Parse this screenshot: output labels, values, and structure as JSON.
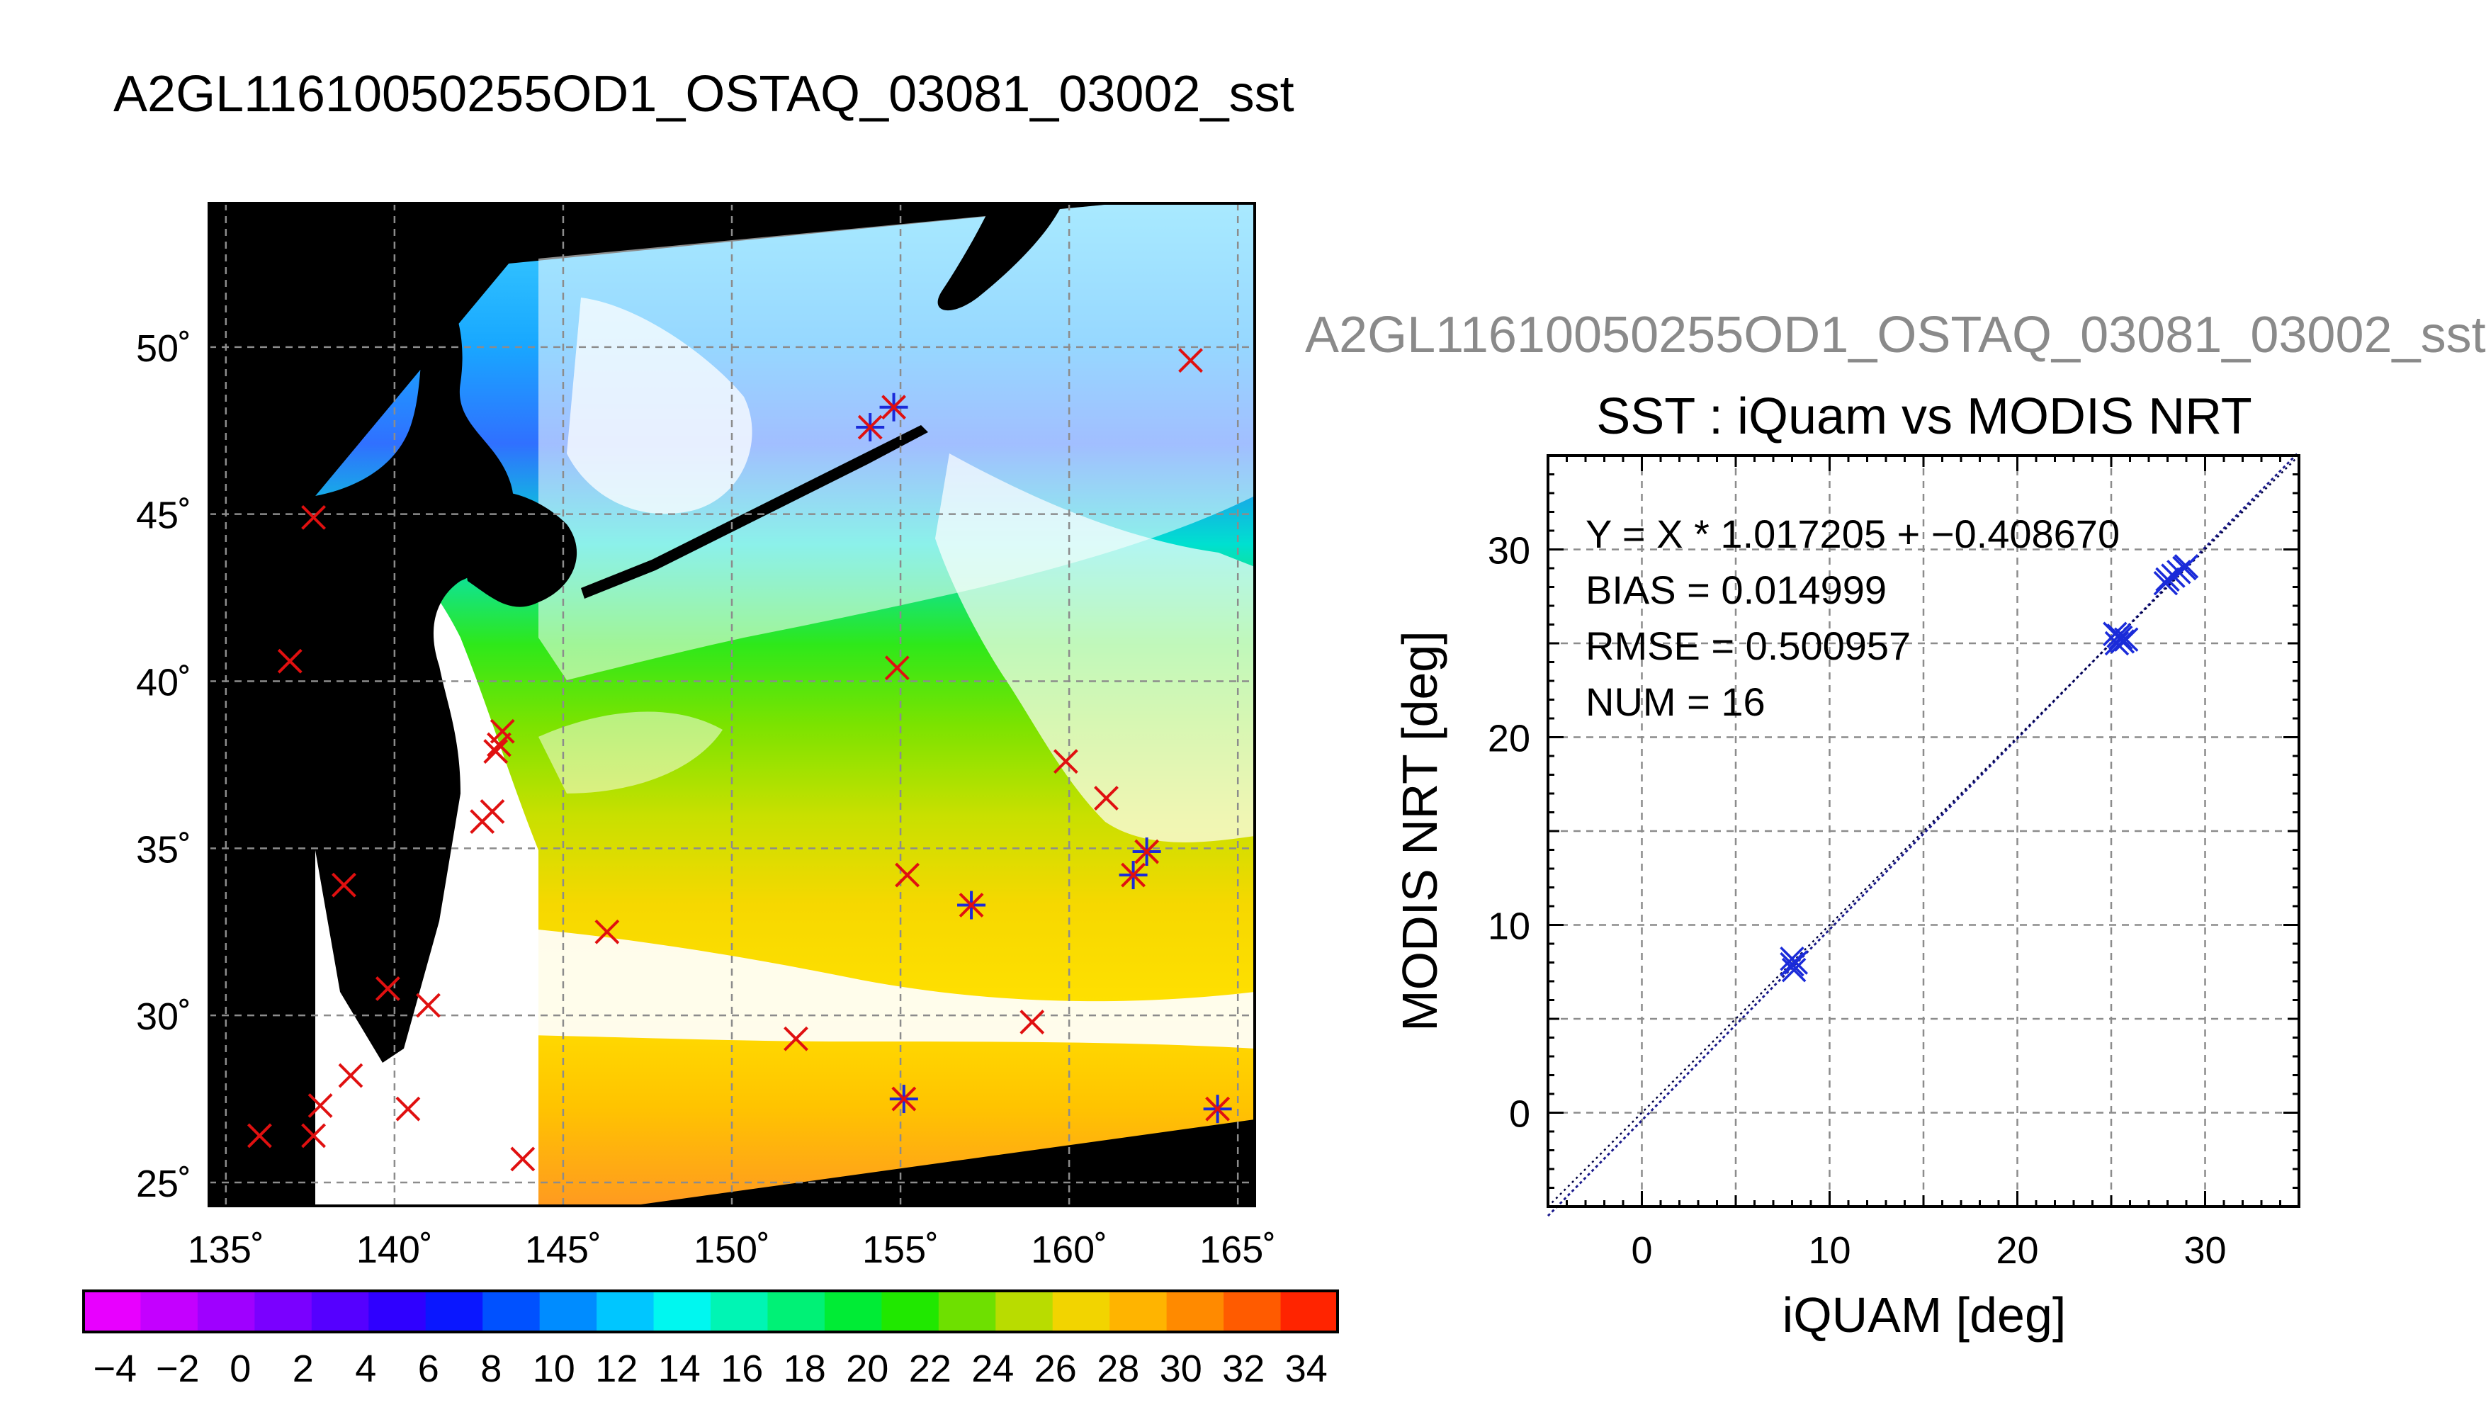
{
  "page_title": "A2GL11610050255OD1_OSTAQ_03081_03002_sst",
  "overlay_title": "A2GL11610050255OD1_OSTAQ_03081_03002_sst",
  "colors": {
    "land": "#000000",
    "grid": "#8c8c8c",
    "match_marker": "#e01010",
    "used_marker": "#1a2bd9",
    "fit_line": "#1a1a8c"
  },
  "chart_data": [
    {
      "type": "heatmap",
      "description_ref": "satellite SST swath map",
      "x_ticks": [
        "135˚",
        "140˚",
        "145˚",
        "150˚",
        "155˚",
        "160˚",
        "165˚"
      ],
      "y_ticks": [
        "25˚",
        "30˚",
        "35˚",
        "40˚",
        "45˚",
        "50˚"
      ],
      "xlim": [
        134.5,
        165.5
      ],
      "ylim": [
        24.3,
        54.3
      ],
      "grid": true,
      "buoy_points": [
        {
          "lon": 163.6,
          "lat": 49.6,
          "used": false
        },
        {
          "lon": 154.8,
          "lat": 48.2,
          "used": true
        },
        {
          "lon": 154.1,
          "lat": 47.6,
          "used": true
        },
        {
          "lon": 137.6,
          "lat": 44.9,
          "used": false
        },
        {
          "lon": 136.9,
          "lat": 40.6,
          "used": false
        },
        {
          "lon": 154.9,
          "lat": 40.4,
          "used": false
        },
        {
          "lon": 143.2,
          "lat": 38.5,
          "used": false
        },
        {
          "lon": 143.1,
          "lat": 38.1,
          "used": false
        },
        {
          "lon": 143.0,
          "lat": 37.9,
          "used": false
        },
        {
          "lon": 159.9,
          "lat": 37.6,
          "used": false
        },
        {
          "lon": 161.1,
          "lat": 36.5,
          "used": false
        },
        {
          "lon": 142.9,
          "lat": 36.1,
          "used": false
        },
        {
          "lon": 142.6,
          "lat": 35.8,
          "used": false
        },
        {
          "lon": 162.3,
          "lat": 34.9,
          "used": true
        },
        {
          "lon": 155.2,
          "lat": 34.2,
          "used": false
        },
        {
          "lon": 161.9,
          "lat": 34.2,
          "used": true
        },
        {
          "lon": 138.5,
          "lat": 33.9,
          "used": false
        },
        {
          "lon": 157.1,
          "lat": 33.3,
          "used": true
        },
        {
          "lon": 146.3,
          "lat": 32.5,
          "used": false
        },
        {
          "lon": 139.8,
          "lat": 30.8,
          "used": false
        },
        {
          "lon": 141.0,
          "lat": 30.3,
          "used": false
        },
        {
          "lon": 158.9,
          "lat": 29.8,
          "used": false
        },
        {
          "lon": 151.9,
          "lat": 29.3,
          "used": false
        },
        {
          "lon": 138.7,
          "lat": 28.2,
          "used": false
        },
        {
          "lon": 155.1,
          "lat": 27.5,
          "used": true
        },
        {
          "lon": 137.8,
          "lat": 27.3,
          "used": false
        },
        {
          "lon": 140.4,
          "lat": 27.2,
          "used": false
        },
        {
          "lon": 164.4,
          "lat": 27.2,
          "used": true
        },
        {
          "lon": 137.6,
          "lat": 26.4,
          "used": false
        },
        {
          "lon": 136.0,
          "lat": 26.4,
          "used": false
        },
        {
          "lon": 143.8,
          "lat": 25.7,
          "used": false
        }
      ]
    },
    {
      "type": "colorbar",
      "tick_labels": [
        "−4",
        "−2",
        "0",
        "2",
        "4",
        "6",
        "8",
        "10",
        "12",
        "14",
        "16",
        "18",
        "20",
        "22",
        "24",
        "26",
        "28",
        "30",
        "32",
        "34"
      ],
      "range": [
        -5,
        35
      ],
      "colors": [
        "#e800ff",
        "#c400ff",
        "#9f00ff",
        "#7a00ff",
        "#5500ff",
        "#2f00ff",
        "#0a17ff",
        "#0051ff",
        "#008cff",
        "#00c6ff",
        "#00f7f0",
        "#00f5b4",
        "#00f176",
        "#00ec35",
        "#20e800",
        "#6ee000",
        "#b9dc00",
        "#f2d400",
        "#ffb400",
        "#ff8a00",
        "#ff5b00",
        "#ff2400"
      ]
    },
    {
      "type": "scatter",
      "title": "SST : iQuam vs MODIS NRT",
      "xlabel": "iQUAM [deg]",
      "ylabel": "MODIS NRT [deg]",
      "xlim": [
        -5,
        35
      ],
      "ylim": [
        -5,
        35
      ],
      "x_ticks": [
        "0",
        "10",
        "20",
        "30"
      ],
      "y_ticks": [
        "0",
        "10",
        "20",
        "30"
      ],
      "grid": true,
      "stats": [
        "Y = X * 1.017205 + −0.408670",
        "BIAS = 0.014999",
        "RMSE = 0.500957",
        "NUM = 16"
      ],
      "fit": {
        "slope": 1.017205,
        "intercept": -0.40867
      },
      "points": [
        {
          "x": 8.0,
          "y": 8.2
        },
        {
          "x": 8.1,
          "y": 7.6
        },
        {
          "x": 8.0,
          "y": 7.9
        },
        {
          "x": 8.2,
          "y": 8.0
        },
        {
          "x": 25.4,
          "y": 25.4
        },
        {
          "x": 25.6,
          "y": 25.1
        },
        {
          "x": 25.2,
          "y": 25.5
        },
        {
          "x": 25.8,
          "y": 25.2
        },
        {
          "x": 25.5,
          "y": 25.3
        },
        {
          "x": 25.3,
          "y": 25.0
        },
        {
          "x": 28.0,
          "y": 28.4
        },
        {
          "x": 28.3,
          "y": 28.6
        },
        {
          "x": 28.9,
          "y": 29.0
        },
        {
          "x": 28.6,
          "y": 28.8
        },
        {
          "x": 27.9,
          "y": 28.2
        },
        {
          "x": 29.0,
          "y": 29.1
        }
      ]
    }
  ]
}
